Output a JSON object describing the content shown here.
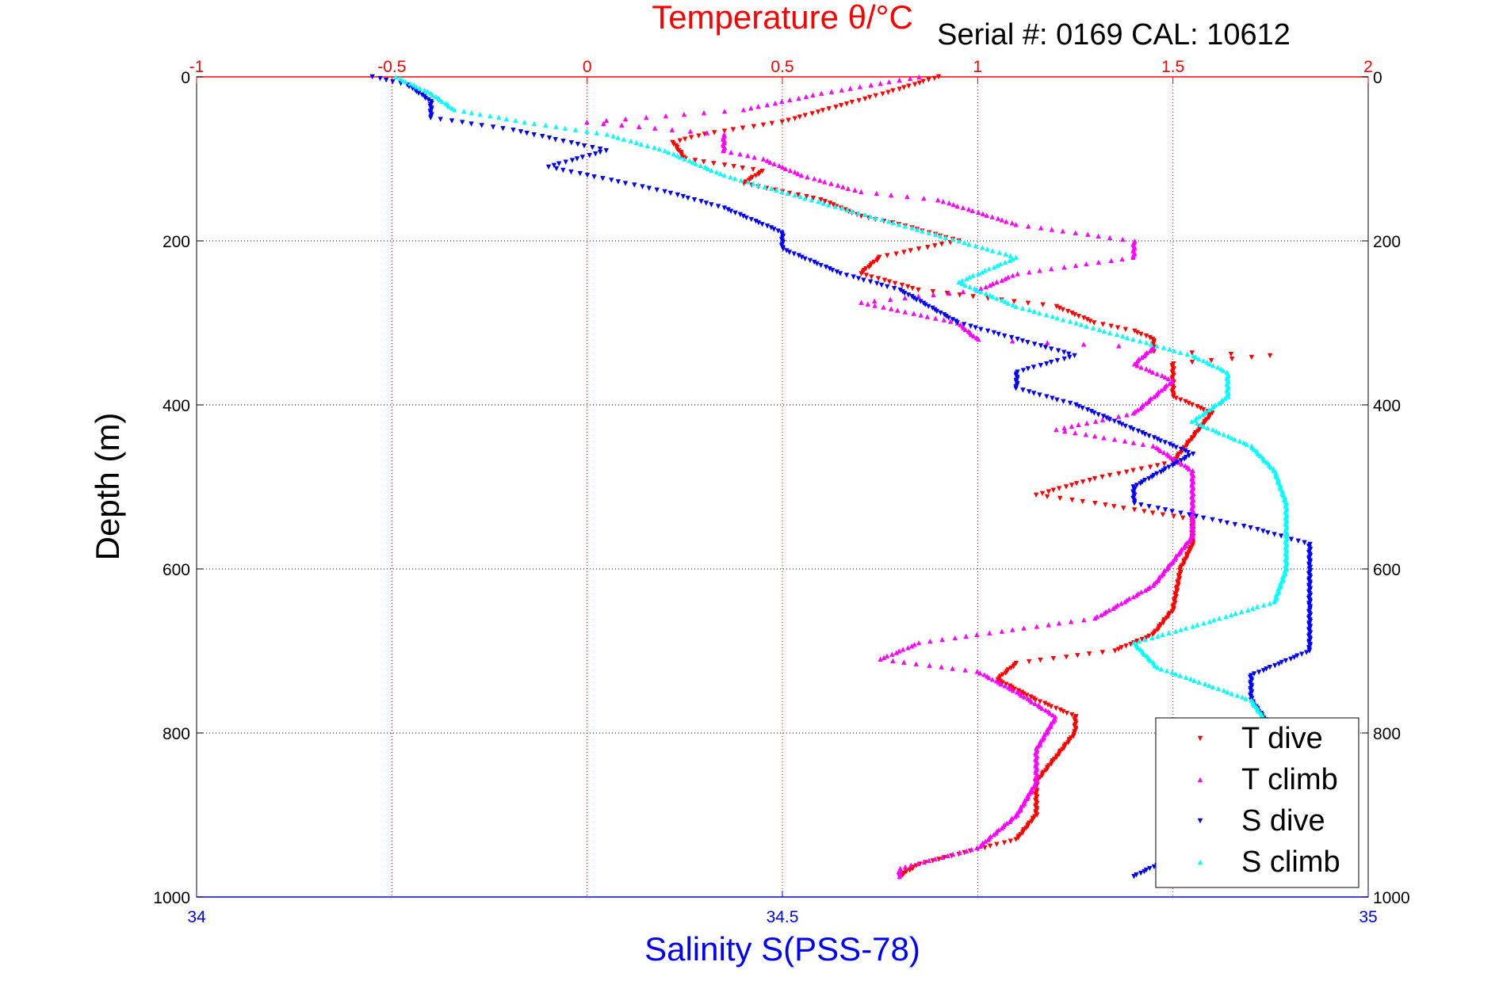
{
  "chart_data": {
    "type": "scatter",
    "title": "Temperature θ/°C",
    "subtitle": "Serial #: 0169 CAL: 10612",
    "xlabel_top": "Temperature θ/°C",
    "xlabel_bottom": "Salinity S(PSS-78)",
    "ylabel": "Depth (m)",
    "x_top_range": [
      -1,
      2
    ],
    "x_top_ticks": [
      "-1",
      "-0.5",
      "0",
      "0.5",
      "1",
      "1.5",
      "2"
    ],
    "x_bottom_range": [
      34,
      35
    ],
    "x_bottom_ticks": [
      "34",
      "34.5",
      "35"
    ],
    "y_range": [
      0,
      1000
    ],
    "y_reversed": true,
    "y_ticks": [
      "0",
      "200",
      "400",
      "600",
      "800",
      "1000"
    ],
    "grid": true,
    "legend_position": "bottom-right",
    "colors": {
      "temperature_axis": "#ff0000",
      "salinity_axis": "#0000ff",
      "t_dive": "#ff0000",
      "t_climb": "#ff00ff",
      "s_dive": "#0000ff",
      "s_climb": "#00ffff"
    },
    "series": [
      {
        "name": "T dive",
        "axis": "temperature",
        "marker": "triangle-down",
        "points": [
          [
            0.9,
            0
          ],
          [
            0.8,
            15
          ],
          [
            0.65,
            35
          ],
          [
            0.5,
            55
          ],
          [
            0.3,
            70
          ],
          [
            0.22,
            80
          ],
          [
            0.25,
            100
          ],
          [
            0.45,
            115
          ],
          [
            0.4,
            130
          ],
          [
            0.6,
            150
          ],
          [
            0.7,
            170
          ],
          [
            0.8,
            180
          ],
          [
            0.95,
            200
          ],
          [
            0.75,
            220
          ],
          [
            0.7,
            240
          ],
          [
            0.85,
            260
          ],
          [
            1.2,
            280
          ],
          [
            1.3,
            300
          ],
          [
            1.4,
            310
          ],
          [
            1.45,
            320
          ],
          [
            1.45,
            335
          ],
          [
            1.75,
            340
          ],
          [
            1.5,
            350
          ],
          [
            1.5,
            370
          ],
          [
            1.5,
            390
          ],
          [
            1.55,
            400
          ],
          [
            1.6,
            410
          ],
          [
            1.55,
            440
          ],
          [
            1.5,
            470
          ],
          [
            1.3,
            490
          ],
          [
            1.15,
            510
          ],
          [
            1.3,
            520
          ],
          [
            1.55,
            540
          ],
          [
            1.55,
            570
          ],
          [
            1.52,
            600
          ],
          [
            1.5,
            650
          ],
          [
            1.45,
            680
          ],
          [
            1.35,
            700
          ],
          [
            1.1,
            715
          ],
          [
            1.05,
            735
          ],
          [
            1.15,
            760
          ],
          [
            1.25,
            780
          ],
          [
            1.25,
            800
          ],
          [
            1.2,
            830
          ],
          [
            1.15,
            860
          ],
          [
            1.15,
            900
          ],
          [
            1.1,
            930
          ],
          [
            0.85,
            960
          ],
          [
            0.8,
            975
          ]
        ]
      },
      {
        "name": "T climb",
        "axis": "temperature",
        "marker": "triangle-up",
        "points": [
          [
            0.85,
            0
          ],
          [
            0.6,
            20
          ],
          [
            0.4,
            40
          ],
          [
            0.0,
            55
          ],
          [
            0.35,
            70
          ],
          [
            0.35,
            90
          ],
          [
            0.45,
            100
          ],
          [
            0.55,
            120
          ],
          [
            0.7,
            140
          ],
          [
            0.9,
            150
          ],
          [
            1.0,
            165
          ],
          [
            1.1,
            180
          ],
          [
            1.4,
            200
          ],
          [
            1.4,
            220
          ],
          [
            1.1,
            240
          ],
          [
            1.0,
            260
          ],
          [
            0.7,
            275
          ],
          [
            0.95,
            300
          ],
          [
            1.0,
            320
          ],
          [
            1.45,
            330
          ],
          [
            1.4,
            350
          ],
          [
            1.5,
            370
          ],
          [
            1.45,
            390
          ],
          [
            1.4,
            410
          ],
          [
            1.2,
            430
          ],
          [
            1.45,
            450
          ],
          [
            1.55,
            480
          ],
          [
            1.55,
            520
          ],
          [
            1.55,
            560
          ],
          [
            1.5,
            590
          ],
          [
            1.45,
            620
          ],
          [
            1.3,
            660
          ],
          [
            0.85,
            690
          ],
          [
            0.75,
            710
          ],
          [
            1.0,
            725
          ],
          [
            1.1,
            750
          ],
          [
            1.2,
            780
          ],
          [
            1.15,
            820
          ],
          [
            1.15,
            860
          ],
          [
            1.1,
            900
          ],
          [
            1.0,
            940
          ],
          [
            0.8,
            965
          ],
          [
            0.8,
            975
          ]
        ]
      },
      {
        "name": "S dive",
        "axis": "salinity",
        "marker": "triangle-down",
        "points": [
          [
            34.15,
            0
          ],
          [
            34.18,
            10
          ],
          [
            34.2,
            30
          ],
          [
            34.2,
            50
          ],
          [
            34.27,
            65
          ],
          [
            34.35,
            90
          ],
          [
            34.3,
            110
          ],
          [
            34.4,
            140
          ],
          [
            34.45,
            160
          ],
          [
            34.5,
            190
          ],
          [
            34.5,
            210
          ],
          [
            34.55,
            240
          ],
          [
            34.6,
            260
          ],
          [
            34.65,
            300
          ],
          [
            34.7,
            320
          ],
          [
            34.75,
            340
          ],
          [
            34.7,
            360
          ],
          [
            34.7,
            380
          ],
          [
            34.75,
            400
          ],
          [
            34.8,
            430
          ],
          [
            34.85,
            460
          ],
          [
            34.8,
            500
          ],
          [
            34.8,
            520
          ],
          [
            34.9,
            550
          ],
          [
            34.95,
            570
          ],
          [
            34.95,
            600
          ],
          [
            34.95,
            650
          ],
          [
            34.95,
            700
          ],
          [
            34.9,
            730
          ],
          [
            34.9,
            760
          ],
          [
            34.92,
            800
          ],
          [
            34.9,
            850
          ],
          [
            34.9,
            900
          ],
          [
            34.85,
            940
          ],
          [
            34.8,
            975
          ]
        ]
      },
      {
        "name": "S climb",
        "axis": "salinity",
        "marker": "triangle-up",
        "points": [
          [
            34.17,
            0
          ],
          [
            34.2,
            20
          ],
          [
            34.22,
            40
          ],
          [
            34.28,
            55
          ],
          [
            34.35,
            70
          ],
          [
            34.4,
            90
          ],
          [
            34.45,
            120
          ],
          [
            34.5,
            140
          ],
          [
            34.55,
            160
          ],
          [
            34.6,
            180
          ],
          [
            34.65,
            200
          ],
          [
            34.7,
            220
          ],
          [
            34.65,
            250
          ],
          [
            34.7,
            280
          ],
          [
            34.75,
            300
          ],
          [
            34.8,
            320
          ],
          [
            34.85,
            340
          ],
          [
            34.88,
            360
          ],
          [
            34.88,
            390
          ],
          [
            34.85,
            420
          ],
          [
            34.9,
            450
          ],
          [
            34.92,
            480
          ],
          [
            34.93,
            520
          ],
          [
            34.93,
            560
          ],
          [
            34.93,
            600
          ],
          [
            34.92,
            640
          ],
          [
            34.85,
            670
          ],
          [
            34.8,
            690
          ],
          [
            34.82,
            720
          ],
          [
            34.9,
            760
          ],
          [
            34.92,
            800
          ],
          [
            34.92,
            850
          ],
          [
            34.9,
            900
          ],
          [
            34.85,
            940
          ],
          [
            34.85,
            975
          ]
        ]
      }
    ]
  }
}
